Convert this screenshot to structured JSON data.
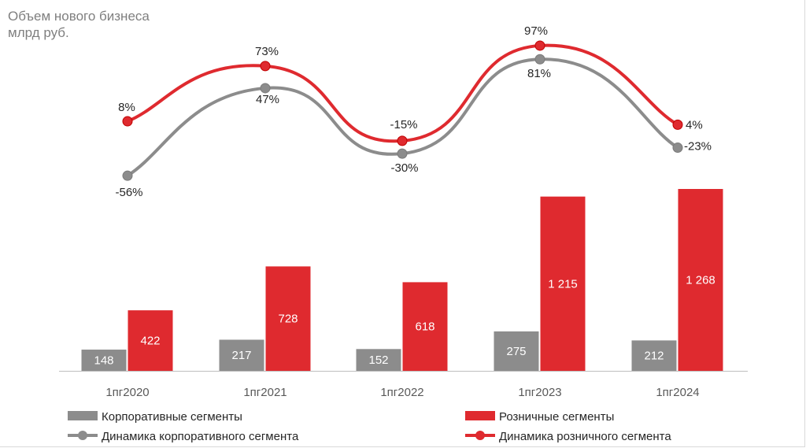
{
  "title": {
    "line1": "Объем нового бизнеса",
    "line2": "млрд руб."
  },
  "chart_data": {
    "type": "bar",
    "categories": [
      "1пг2020",
      "1пг2021",
      "1пг2022",
      "1пг2023",
      "1пг2024"
    ],
    "series": [
      {
        "name": "Корпоративные сегменты",
        "kind": "bar",
        "color": "#8c8c8c",
        "values": [
          148,
          217,
          152,
          275,
          212
        ],
        "labels": [
          "148",
          "217",
          "152",
          "275",
          "212"
        ]
      },
      {
        "name": "Розничные сегменты",
        "kind": "bar",
        "color": "#df2a2f",
        "values": [
          422,
          728,
          618,
          1215,
          1268
        ],
        "labels": [
          "422",
          "728",
          "618",
          "1 215",
          "1 268"
        ]
      },
      {
        "name": "Динамика корпоративного сегмента",
        "kind": "line",
        "color": "#8c8c8c",
        "values": [
          -56,
          47,
          -30,
          81,
          -23
        ],
        "labels": [
          "-56%",
          "47%",
          "-30%",
          "81%",
          "-23%"
        ]
      },
      {
        "name": "Динамика розничного сегмента",
        "kind": "line",
        "color": "#df2a2f",
        "values": [
          8,
          73,
          -15,
          97,
          4
        ],
        "labels": [
          "8%",
          "73%",
          "-15%",
          "97%",
          "4%"
        ]
      }
    ],
    "legend_position": "bottom",
    "grid": false
  }
}
